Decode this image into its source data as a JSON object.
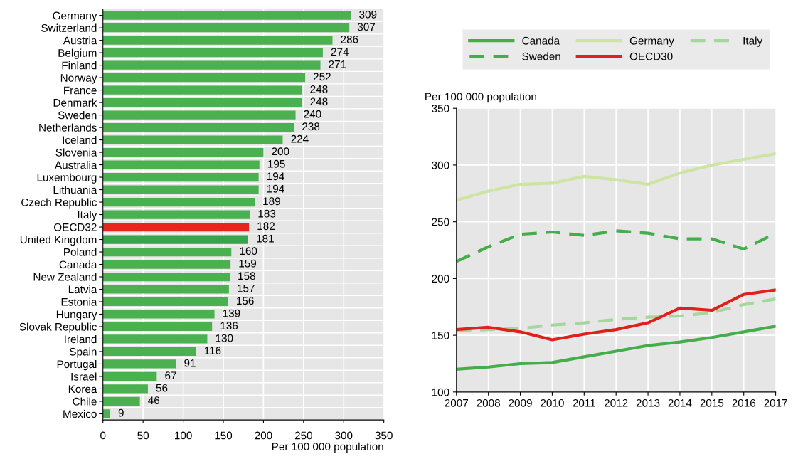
{
  "chart_data": [
    {
      "type": "bar",
      "orientation": "horizontal",
      "categories": [
        "Germany",
        "Switzerland",
        "Austria",
        "Belgium",
        "Finland",
        "Norway",
        "France",
        "Denmark",
        "Sweden",
        "Netherlands",
        "Iceland",
        "Slovenia",
        "Australia",
        "Luxembourg",
        "Lithuania",
        "Czech Republic",
        "Italy",
        "OECD32",
        "United Kingdom",
        "Poland",
        "Canada",
        "New Zealand",
        "Latvia",
        "Estonia",
        "Hungary",
        "Slovak Republic",
        "Ireland",
        "Spain",
        "Portugal",
        "Israel",
        "Korea",
        "Chile",
        "Mexico"
      ],
      "values": [
        309,
        307,
        286,
        274,
        271,
        252,
        248,
        248,
        240,
        238,
        224,
        200,
        195,
        194,
        194,
        189,
        183,
        182,
        181,
        160,
        159,
        158,
        157,
        156,
        139,
        136,
        130,
        116,
        91,
        67,
        56,
        46,
        9
      ],
      "colors": [
        "#4bb04f",
        "#4bb04f",
        "#4bb04f",
        "#4bb04f",
        "#4bb04f",
        "#4bb04f",
        "#4bb04f",
        "#4bb04f",
        "#4bb04f",
        "#4bb04f",
        "#4bb04f",
        "#4bb04f",
        "#4bb04f",
        "#4bb04f",
        "#4bb04f",
        "#4bb04f",
        "#4bb04f",
        "#e8251a",
        "#36a44b",
        "#4bb04f",
        "#4bb04f",
        "#4bb04f",
        "#4bb04f",
        "#4bb04f",
        "#4bb04f",
        "#4bb04f",
        "#4bb04f",
        "#4bb04f",
        "#4bb04f",
        "#4bb04f",
        "#4bb04f",
        "#4bb04f",
        "#4bb04f"
      ],
      "xlim": [
        0,
        350
      ],
      "xticks": [
        0,
        50,
        100,
        150,
        200,
        250,
        300,
        350
      ],
      "xlabel": "Per 100 000 population",
      "data_labels": true,
      "grid": "x",
      "legend": false
    },
    {
      "type": "line",
      "x": [
        2007,
        2008,
        2009,
        2010,
        2011,
        2012,
        2013,
        2014,
        2015,
        2016,
        2017
      ],
      "xlim": [
        2007,
        2017
      ],
      "xticks": [
        2007,
        2008,
        2009,
        2010,
        2011,
        2012,
        2013,
        2014,
        2015,
        2016,
        2017
      ],
      "ylim": [
        100,
        350
      ],
      "yticks": [
        100,
        150,
        200,
        250,
        300,
        350
      ],
      "ylabel": "Per 100 000 population",
      "grid": true,
      "legend": "top",
      "series": [
        {
          "name": "Canada",
          "color": "#45ae4a",
          "line_style": "solid",
          "values": [
            120,
            122,
            125,
            126,
            131,
            136,
            141,
            144,
            148,
            153,
            158
          ]
        },
        {
          "name": "Germany",
          "color": "#cde5a2",
          "line_style": "solid",
          "values": [
            269,
            277,
            283,
            284,
            290,
            287,
            283,
            293,
            300,
            305,
            310
          ]
        },
        {
          "name": "Italy",
          "color": "#a5d69d",
          "line_style": "dashed",
          "values": [
            154,
            155,
            156,
            159,
            161,
            164,
            166,
            167,
            170,
            177,
            182
          ]
        },
        {
          "name": "Sweden",
          "color": "#45ae4a",
          "line_style": "dashed",
          "values": [
            215,
            228,
            239,
            241,
            238,
            242,
            240,
            235,
            235,
            226,
            240
          ]
        },
        {
          "name": "OECD30",
          "color": "#e0201b",
          "line_style": "solid",
          "values": [
            155,
            157,
            153,
            146,
            151,
            155,
            161,
            174,
            172,
            186,
            190
          ]
        }
      ]
    }
  ]
}
